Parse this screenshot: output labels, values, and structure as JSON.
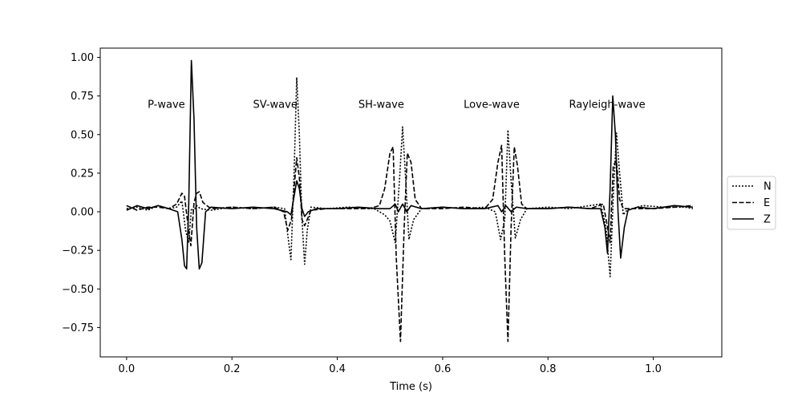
{
  "chart_data": {
    "type": "line",
    "title": "",
    "xlabel": "Time (s)",
    "ylabel": "",
    "xlim": [
      -0.05,
      1.13
    ],
    "ylim": [
      -0.94,
      1.06
    ],
    "xticks": [
      0.0,
      0.2,
      0.4,
      0.6,
      0.8,
      1.0
    ],
    "xtick_labels": [
      "0.0",
      "0.2",
      "0.4",
      "0.6",
      "0.8",
      "1.0"
    ],
    "yticks": [
      -0.75,
      -0.5,
      -0.25,
      0.0,
      0.25,
      0.5,
      0.75,
      1.0
    ],
    "ytick_labels": [
      "−0.75",
      "−0.50",
      "−0.25",
      "0.00",
      "0.25",
      "0.50",
      "0.75",
      "1.00"
    ],
    "grid": false,
    "legend_position": "center-right-outside",
    "annotations": [
      {
        "text": "P-wave",
        "x": 0.04,
        "y": 0.7
      },
      {
        "text": "SV-wave",
        "x": 0.24,
        "y": 0.7
      },
      {
        "text": "SH-wave",
        "x": 0.44,
        "y": 0.7
      },
      {
        "text": "Love-wave",
        "x": 0.64,
        "y": 0.7
      },
      {
        "text": "Rayleigh-wave",
        "x": 0.84,
        "y": 0.7
      }
    ],
    "series": [
      {
        "name": "N",
        "style": "dotted",
        "color": "#000000",
        "points": [
          [
            0.0,
            0.02
          ],
          [
            0.02,
            0.03
          ],
          [
            0.04,
            0.01
          ],
          [
            0.06,
            0.04
          ],
          [
            0.08,
            0.02
          ],
          [
            0.095,
            0.03
          ],
          [
            0.105,
            0.07
          ],
          [
            0.112,
            -0.12
          ],
          [
            0.118,
            -0.2
          ],
          [
            0.123,
            0.02
          ],
          [
            0.128,
            0.01
          ],
          [
            0.133,
            0.04
          ],
          [
            0.14,
            0.02
          ],
          [
            0.16,
            0.01
          ],
          [
            0.2,
            0.03
          ],
          [
            0.24,
            0.02
          ],
          [
            0.28,
            0.03
          ],
          [
            0.3,
            0.02
          ],
          [
            0.306,
            -0.15
          ],
          [
            0.312,
            -0.31
          ],
          [
            0.318,
            0.25
          ],
          [
            0.323,
            0.87
          ],
          [
            0.328,
            0.5
          ],
          [
            0.333,
            -0.05
          ],
          [
            0.338,
            -0.34
          ],
          [
            0.343,
            -0.12
          ],
          [
            0.35,
            0.03
          ],
          [
            0.38,
            0.02
          ],
          [
            0.42,
            0.03
          ],
          [
            0.47,
            0.02
          ],
          [
            0.49,
            -0.02
          ],
          [
            0.5,
            -0.06
          ],
          [
            0.51,
            -0.2
          ],
          [
            0.518,
            0.2
          ],
          [
            0.524,
            0.55
          ],
          [
            0.53,
            0.2
          ],
          [
            0.536,
            -0.18
          ],
          [
            0.545,
            -0.05
          ],
          [
            0.56,
            0.02
          ],
          [
            0.6,
            0.03
          ],
          [
            0.64,
            0.02
          ],
          [
            0.68,
            0.03
          ],
          [
            0.7,
            0.0
          ],
          [
            0.71,
            -0.18
          ],
          [
            0.718,
            -0.05
          ],
          [
            0.724,
            0.53
          ],
          [
            0.73,
            0.2
          ],
          [
            0.738,
            -0.17
          ],
          [
            0.748,
            -0.05
          ],
          [
            0.76,
            0.02
          ],
          [
            0.8,
            0.03
          ],
          [
            0.84,
            0.02
          ],
          [
            0.88,
            0.04
          ],
          [
            0.9,
            0.05
          ],
          [
            0.91,
            -0.1
          ],
          [
            0.918,
            -0.42
          ],
          [
            0.924,
            0.1
          ],
          [
            0.93,
            0.51
          ],
          [
            0.936,
            0.25
          ],
          [
            0.943,
            -0.02
          ],
          [
            0.95,
            0.01
          ],
          [
            0.98,
            0.04
          ],
          [
            1.02,
            0.03
          ],
          [
            1.06,
            0.03
          ],
          [
            1.075,
            0.02
          ]
        ]
      },
      {
        "name": "E",
        "style": "dashed",
        "color": "#000000",
        "points": [
          [
            0.0,
            0.04
          ],
          [
            0.02,
            0.01
          ],
          [
            0.04,
            0.03
          ],
          [
            0.06,
            0.03
          ],
          [
            0.08,
            0.02
          ],
          [
            0.095,
            0.05
          ],
          [
            0.105,
            0.12
          ],
          [
            0.11,
            0.1
          ],
          [
            0.116,
            -0.07
          ],
          [
            0.122,
            -0.22
          ],
          [
            0.128,
            0.06
          ],
          [
            0.133,
            0.12
          ],
          [
            0.138,
            0.13
          ],
          [
            0.145,
            0.06
          ],
          [
            0.16,
            0.02
          ],
          [
            0.2,
            0.03
          ],
          [
            0.24,
            0.02
          ],
          [
            0.28,
            0.03
          ],
          [
            0.298,
            0.0
          ],
          [
            0.306,
            -0.12
          ],
          [
            0.313,
            -0.05
          ],
          [
            0.318,
            0.15
          ],
          [
            0.323,
            0.35
          ],
          [
            0.328,
            0.22
          ],
          [
            0.333,
            -0.05
          ],
          [
            0.338,
            -0.09
          ],
          [
            0.343,
            -0.05
          ],
          [
            0.35,
            0.01
          ],
          [
            0.38,
            0.02
          ],
          [
            0.42,
            0.02
          ],
          [
            0.46,
            0.02
          ],
          [
            0.48,
            0.04
          ],
          [
            0.49,
            0.15
          ],
          [
            0.5,
            0.38
          ],
          [
            0.506,
            0.42
          ],
          [
            0.512,
            -0.3
          ],
          [
            0.52,
            -0.84
          ],
          [
            0.527,
            -0.1
          ],
          [
            0.533,
            0.38
          ],
          [
            0.54,
            0.32
          ],
          [
            0.548,
            0.08
          ],
          [
            0.56,
            0.02
          ],
          [
            0.6,
            0.02
          ],
          [
            0.64,
            0.03
          ],
          [
            0.68,
            0.02
          ],
          [
            0.695,
            0.08
          ],
          [
            0.705,
            0.32
          ],
          [
            0.712,
            0.43
          ],
          [
            0.718,
            -0.3
          ],
          [
            0.724,
            -0.84
          ],
          [
            0.73,
            -0.1
          ],
          [
            0.736,
            0.42
          ],
          [
            0.742,
            0.3
          ],
          [
            0.75,
            0.05
          ],
          [
            0.76,
            0.02
          ],
          [
            0.8,
            0.02
          ],
          [
            0.84,
            0.03
          ],
          [
            0.88,
            0.02
          ],
          [
            0.905,
            0.05
          ],
          [
            0.912,
            -0.08
          ],
          [
            0.918,
            -0.2
          ],
          [
            0.924,
            0.3
          ],
          [
            0.93,
            0.33
          ],
          [
            0.936,
            0.08
          ],
          [
            0.943,
            0.02
          ],
          [
            0.96,
            0.02
          ],
          [
            1.0,
            0.02
          ],
          [
            1.04,
            0.03
          ],
          [
            1.075,
            0.04
          ]
        ]
      },
      {
        "name": "Z",
        "style": "solid",
        "color": "#000000",
        "points": [
          [
            0.0,
            0.01
          ],
          [
            0.02,
            0.04
          ],
          [
            0.04,
            0.02
          ],
          [
            0.06,
            0.04
          ],
          [
            0.08,
            0.02
          ],
          [
            0.097,
            0.0
          ],
          [
            0.105,
            -0.18
          ],
          [
            0.11,
            -0.35
          ],
          [
            0.114,
            -0.37
          ],
          [
            0.118,
            0.05
          ],
          [
            0.123,
            0.98
          ],
          [
            0.128,
            0.6
          ],
          [
            0.133,
            -0.1
          ],
          [
            0.138,
            -0.37
          ],
          [
            0.143,
            -0.33
          ],
          [
            0.15,
            0.0
          ],
          [
            0.16,
            0.03
          ],
          [
            0.2,
            0.02
          ],
          [
            0.24,
            0.03
          ],
          [
            0.28,
            0.02
          ],
          [
            0.305,
            0.0
          ],
          [
            0.312,
            -0.02
          ],
          [
            0.318,
            0.1
          ],
          [
            0.323,
            0.2
          ],
          [
            0.328,
            0.15
          ],
          [
            0.333,
            0.02
          ],
          [
            0.338,
            -0.03
          ],
          [
            0.345,
            0.0
          ],
          [
            0.36,
            0.02
          ],
          [
            0.4,
            0.02
          ],
          [
            0.44,
            0.03
          ],
          [
            0.48,
            0.02
          ],
          [
            0.5,
            0.02
          ],
          [
            0.51,
            0.05
          ],
          [
            0.516,
            0.0
          ],
          [
            0.524,
            0.05
          ],
          [
            0.532,
            0.0
          ],
          [
            0.54,
            0.04
          ],
          [
            0.56,
            0.02
          ],
          [
            0.6,
            0.03
          ],
          [
            0.64,
            0.02
          ],
          [
            0.68,
            0.02
          ],
          [
            0.705,
            0.04
          ],
          [
            0.712,
            0.0
          ],
          [
            0.72,
            0.04
          ],
          [
            0.73,
            0.0
          ],
          [
            0.74,
            0.03
          ],
          [
            0.76,
            0.02
          ],
          [
            0.8,
            0.02
          ],
          [
            0.84,
            0.03
          ],
          [
            0.88,
            0.02
          ],
          [
            0.9,
            0.02
          ],
          [
            0.908,
            -0.1
          ],
          [
            0.913,
            -0.27
          ],
          [
            0.918,
            0.15
          ],
          [
            0.923,
            0.75
          ],
          [
            0.928,
            0.5
          ],
          [
            0.933,
            0.0
          ],
          [
            0.938,
            -0.3
          ],
          [
            0.945,
            -0.1
          ],
          [
            0.952,
            0.01
          ],
          [
            0.97,
            0.03
          ],
          [
            1.0,
            0.02
          ],
          [
            1.04,
            0.04
          ],
          [
            1.075,
            0.03
          ]
        ]
      }
    ]
  }
}
